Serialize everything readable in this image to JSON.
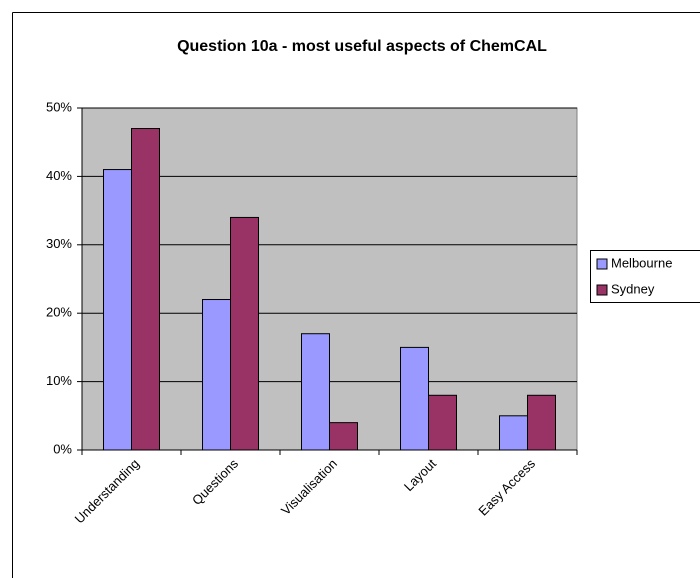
{
  "chart_data": {
    "type": "bar",
    "title": "Question 10a - most useful aspects of ChemCAL",
    "categories": [
      "Understanding",
      "Questions",
      "Visualisation",
      "Layout",
      "Easy Access"
    ],
    "series": [
      {
        "name": "Melbourne",
        "color": "#9999ff",
        "values": [
          41,
          22,
          17,
          15,
          5
        ]
      },
      {
        "name": "Sydney",
        "color": "#993366",
        "values": [
          47,
          34,
          4,
          8,
          8
        ]
      }
    ],
    "ylim": [
      0,
      50
    ],
    "yticks": [
      {
        "value": 0,
        "label": "0%"
      },
      {
        "value": 10,
        "label": "10%"
      },
      {
        "value": 20,
        "label": "20%"
      },
      {
        "value": 30,
        "label": "30%"
      },
      {
        "value": 40,
        "label": "40%"
      },
      {
        "value": 50,
        "label": "50%"
      }
    ],
    "grid": true,
    "legend": "right"
  }
}
